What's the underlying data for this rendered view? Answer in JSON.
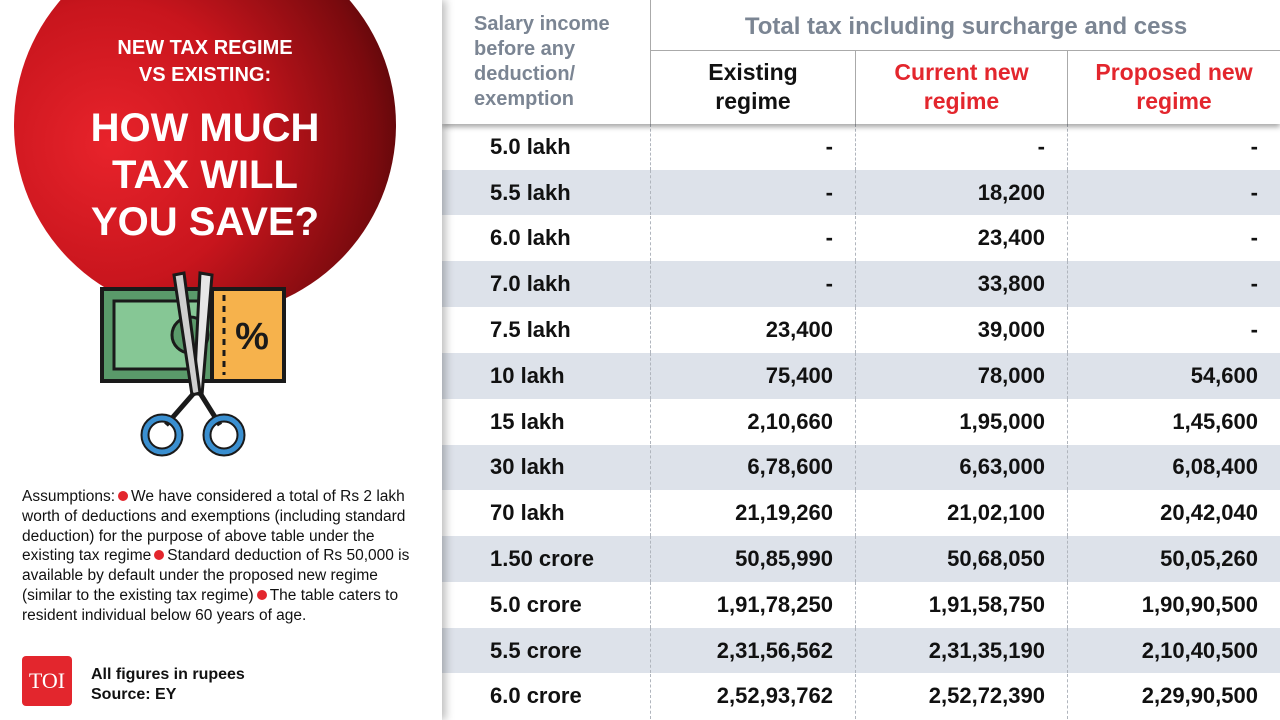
{
  "left": {
    "kicker": [
      "NEW TAX REGIME",
      "VS EXISTING:"
    ],
    "headline": [
      "HOW MUCH",
      "TAX WILL",
      "YOU SAVE?"
    ],
    "assumptions": {
      "label": "Assumptions:",
      "items": [
        "We have considered a total of Rs 2 lakh worth of deductions and exemptions (including standard deduction) for the purpose of above table under the existing tax regime",
        "Standard deduction of Rs 50,000 is available by default under the proposed new regime (similar to the existing tax regime)",
        "The table caters to resident individual below 60 years of age."
      ]
    },
    "logo": "TOI",
    "note": "All figures in rupees",
    "source": "Source: EY"
  },
  "table": {
    "first_header": "Salary income before any deduction/ exemption",
    "group_header": "Total tax including surcharge and cess",
    "columns": [
      {
        "text": "Existing regime",
        "color": "#111111"
      },
      {
        "text": "Current new regime",
        "color": "#e3262d"
      },
      {
        "text": "Proposed new regime",
        "color": "#e3262d"
      }
    ],
    "rows": [
      [
        "5.0 lakh",
        "-",
        "-",
        "-"
      ],
      [
        "5.5 lakh",
        "-",
        "18,200",
        "-"
      ],
      [
        "6.0 lakh",
        "-",
        "23,400",
        "-"
      ],
      [
        "7.0 lakh",
        "-",
        "33,800",
        "-"
      ],
      [
        "7.5 lakh",
        "23,400",
        "39,000",
        "-"
      ],
      [
        "10 lakh",
        "75,400",
        "78,000",
        "54,600"
      ],
      [
        "15 lakh",
        "2,10,660",
        "1,95,000",
        "1,45,600"
      ],
      [
        "30 lakh",
        "6,78,600",
        "6,63,000",
        "6,08,400"
      ],
      [
        "70 lakh",
        "21,19,260",
        "21,02,100",
        "20,42,040"
      ],
      [
        "1.50 crore",
        "50,85,990",
        "50,68,050",
        "50,05,260"
      ],
      [
        "5.0 crore",
        "1,91,78,250",
        "1,91,58,750",
        "1,90,90,500"
      ],
      [
        "5.5 crore",
        "2,31,56,562",
        "2,31,35,190",
        "2,10,40,500"
      ],
      [
        "6.0 crore",
        "2,52,93,762",
        "2,52,72,390",
        "2,29,90,500"
      ]
    ]
  }
}
